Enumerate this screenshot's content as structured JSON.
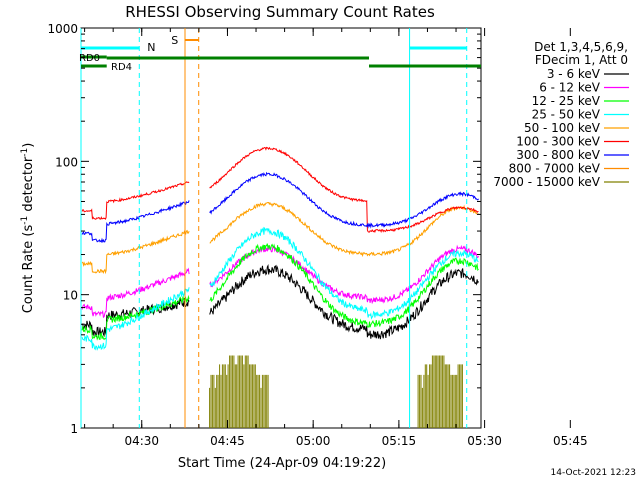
{
  "chart_data": {
    "type": "line",
    "title": "RHESSI Observing Summary Count Rates",
    "xlabel": "Start Time (24-Apr-09 04:19:22)",
    "ylabel_main": "Count Rate (s",
    "ylabel_sup1": "-1",
    "ylabel_mid": " detector",
    "ylabel_sup2": "-1",
    "ylabel_end": ")",
    "y_scale": "log",
    "ylim": [
      1,
      1000
    ],
    "xlim_minutes": [
      0,
      70
    ],
    "x_ticks": [
      {
        "label": "04:30",
        "min": 10.63
      },
      {
        "label": "04:45",
        "min": 25.63
      },
      {
        "label": "05:00",
        "min": 40.63
      },
      {
        "label": "05:15",
        "min": 55.63
      },
      {
        "label": "05:30",
        "min": 70.63
      },
      {
        "label": "05:45",
        "min": 85.63
      }
    ],
    "y_ticks": [
      {
        "label": "1",
        "value": 1
      },
      {
        "label": "10",
        "value": 10
      },
      {
        "label": "100",
        "value": 100
      },
      {
        "label": "1000",
        "value": 1000
      }
    ],
    "legend": {
      "placement": "right",
      "header1": "Det 1,3,4,5,6,9,",
      "header2": "FDecim 1, Att 0",
      "entries": [
        {
          "name": "3 - 6 keV",
          "color": "#000000"
        },
        {
          "name": "6 - 12 keV",
          "color": "#ff00ff"
        },
        {
          "name": "12 - 25 keV",
          "color": "#00ff00"
        },
        {
          "name": "25 - 50 keV",
          "color": "#00ffff"
        },
        {
          "name": "50 - 100 keV",
          "color": "#ffa000"
        },
        {
          "name": "100 - 300 keV",
          "color": "#ff0000"
        },
        {
          "name": "300 - 800 keV",
          "color": "#0000ff"
        },
        {
          "name": "800 - 7000 keV",
          "color": "#ff8c00"
        },
        {
          "name": "7000 - 15000 keV",
          "color": "#808000"
        }
      ]
    },
    "flags": [
      {
        "label": "N",
        "color": "#00ffff"
      },
      {
        "label": "S",
        "color": "#ff8c00"
      },
      {
        "label": "RD0",
        "color": "#008000"
      },
      {
        "label": "RD4",
        "color": "#008000"
      }
    ]
  },
  "footer_date": "14-Oct-2021 12:23"
}
